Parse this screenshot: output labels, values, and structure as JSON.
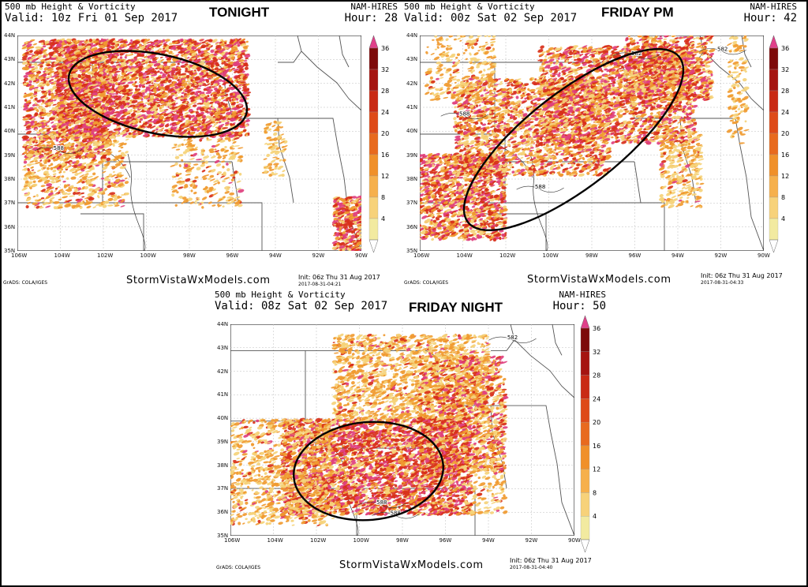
{
  "panels": [
    {
      "id": "tonight",
      "title_line1": "500 mb Height & Vorticity",
      "model": "NAM-HIRES",
      "valid": "Valid: 10z Fri 01 Sep 2017",
      "hour": "Hour: 28",
      "tag": "TONIGHT",
      "watermark": "StormVistaWxModels.com",
      "grads": "GrADS: COLA/IGES",
      "init_line1": "Init: 06z Thu 31 Aug 2017",
      "init_line2": "2017-08-31-04:21",
      "contours": [
        "588"
      ]
    },
    {
      "id": "friday-pm",
      "title_line1": "500 mb Height & Vorticity",
      "model": "NAM-HIRES",
      "valid": "Valid: 00z Sat 02 Sep 2017",
      "hour": "Hour: 42",
      "tag": "FRIDAY PM",
      "watermark": "StormVistaWxModels.com",
      "grads": "GrADS: COLA/IGES",
      "init_line1": "Init: 06z Thu 31 Aug 2017",
      "init_line2": "2017-08-31-04:33",
      "contours": [
        "582",
        "582",
        "588",
        "588"
      ]
    },
    {
      "id": "friday-night",
      "title_line1": "500 mb Height & Vorticity",
      "model": "NAM-HIRES",
      "valid": "Valid: 08z Sat 02 Sep 2017",
      "hour": "Hour: 50",
      "tag": "FRIDAY NIGHT",
      "watermark": "StormVistaWxModels.com",
      "grads": "GrADS: COLA/IGES",
      "init_line1": "Init: 06z Thu 31 Aug 2017",
      "init_line2": "2017-08-31-04:40",
      "contours": [
        "582",
        "588",
        "588"
      ]
    }
  ],
  "lat_labels": [
    "44N",
    "43N",
    "42N",
    "41N",
    "40N",
    "39N",
    "38N",
    "37N",
    "36N",
    "35N"
  ],
  "lon_labels": [
    "106W",
    "104W",
    "102W",
    "100W",
    "98W",
    "96W",
    "94W",
    "92W",
    "90W"
  ],
  "colorbar": {
    "labels": [
      "36",
      "32",
      "28",
      "24",
      "20",
      "16",
      "12",
      "8",
      "4"
    ],
    "colors": [
      "#f2eaa0",
      "#f7d27a",
      "#f6b04c",
      "#f0902a",
      "#e86a1e",
      "#de4a18",
      "#c92a14",
      "#a51410",
      "#7d0a0a"
    ],
    "top_color": "#e0408a",
    "bottom_color": "#ffffff"
  },
  "colors": {
    "vort_light": "#f5d27a",
    "vort_orange": "#f09a30",
    "vort_red": "#d8301a",
    "vort_magenta": "#e0407f",
    "grid": "#bdbdbd",
    "border": "#555555",
    "ellipse": "#000000"
  }
}
